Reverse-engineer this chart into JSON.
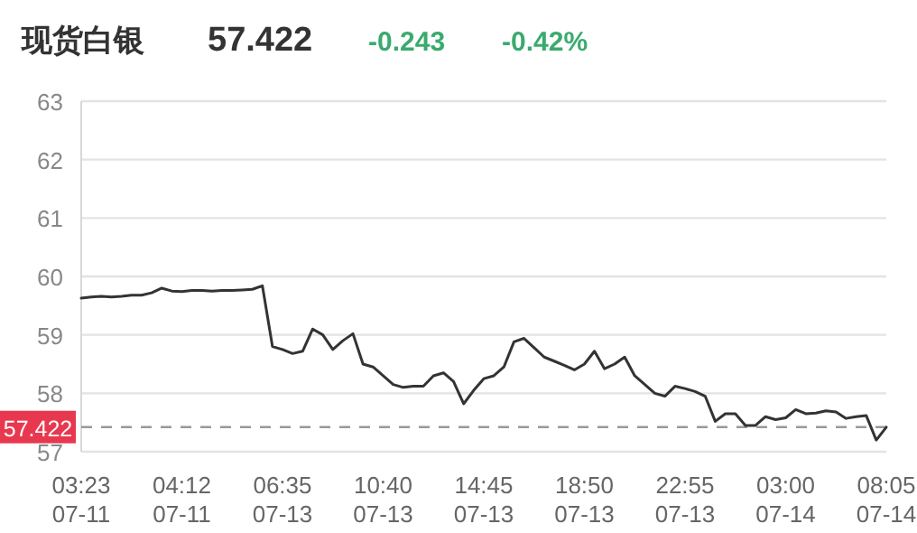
{
  "chart_data": {
    "type": "line",
    "title": "现货白银",
    "annotations": [
      "57.422",
      "-0.243",
      "-0.42%"
    ],
    "categories": [
      "03:23\n07-11",
      null,
      null,
      null,
      null,
      null,
      null,
      null,
      null,
      null,
      "04:12\n07-11",
      null,
      null,
      null,
      null,
      null,
      null,
      null,
      null,
      null,
      "06:35\n07-13",
      null,
      null,
      null,
      null,
      null,
      null,
      null,
      null,
      null,
      "10:40\n07-13",
      null,
      null,
      null,
      null,
      null,
      null,
      null,
      null,
      null,
      "14:45\n07-13",
      null,
      null,
      null,
      null,
      null,
      null,
      null,
      null,
      null,
      "18:50\n07-13",
      null,
      null,
      null,
      null,
      null,
      null,
      null,
      null,
      null,
      "22:55\n07-13",
      null,
      null,
      null,
      null,
      null,
      null,
      null,
      null,
      null,
      "03:00\n07-14",
      null,
      null,
      null,
      null,
      null,
      null,
      null,
      null,
      null,
      "08:05\n07-14"
    ],
    "series": [
      {
        "color": "#333333",
        "values": [
          59.63,
          59.65,
          59.66,
          59.65,
          59.66,
          59.68,
          59.68,
          59.72,
          59.8,
          59.75,
          59.74,
          59.76,
          59.76,
          59.75,
          59.76,
          59.76,
          59.77,
          59.78,
          59.84,
          58.8,
          58.75,
          58.68,
          58.72,
          59.1,
          59.0,
          58.75,
          58.9,
          59.02,
          58.5,
          58.45,
          58.3,
          58.15,
          58.1,
          58.12,
          58.12,
          58.3,
          58.35,
          58.2,
          57.82,
          58.05,
          58.25,
          58.3,
          58.45,
          58.88,
          58.94,
          58.78,
          58.62,
          58.55,
          58.48,
          58.4,
          58.5,
          58.72,
          58.42,
          58.5,
          58.62,
          58.3,
          58.15,
          58.0,
          57.95,
          58.12,
          58.08,
          58.03,
          57.95,
          57.52,
          57.65,
          57.65,
          57.45,
          57.45,
          57.6,
          57.55,
          57.58,
          57.72,
          57.65,
          57.66,
          57.7,
          57.68,
          57.57,
          57.6,
          57.62,
          57.2,
          57.42
        ]
      }
    ],
    "ylim": [
      57,
      63
    ],
    "yticks": [
      57,
      58,
      59,
      60,
      61,
      62,
      63
    ],
    "grid": "y",
    "ref_lines": [
      {
        "axis": "y",
        "value": 57.422,
        "label": "57.422",
        "color": "#999999",
        "line_style": "dashed"
      }
    ]
  }
}
